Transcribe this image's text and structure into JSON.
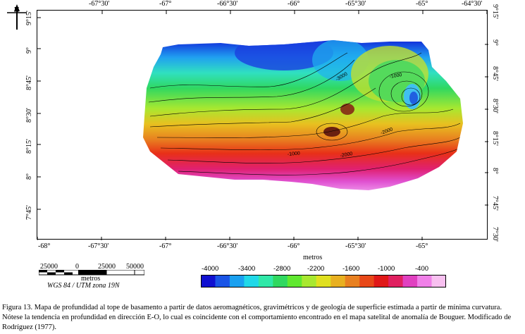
{
  "map": {
    "top_lon_labels": [
      "-67°30'",
      "-67°",
      "-66°30'",
      "-66°",
      "-65°30'",
      "-65°",
      "-64°30'"
    ],
    "bottom_lon_labels": [
      "-68°",
      "-67°30'",
      "-67°",
      "-66°30'",
      "-66°",
      "-65°30'",
      "-65°"
    ],
    "left_lat_labels": [
      "9°15'",
      "9°",
      "8°45'",
      "8°30'",
      "8°15'",
      "8°",
      "7°45'"
    ],
    "right_lat_labels": [
      "9°15'",
      "9°",
      "8°45'",
      "8°30'",
      "8°15'",
      "8°",
      "7°45'",
      "7°30'"
    ],
    "x_axis_label": "metros",
    "contour_labels": [
      "-3000",
      "-1000",
      "-2000",
      "-1000",
      "-2000"
    ],
    "north_symbol": "N"
  },
  "scalebar": {
    "ticks": [
      "25000",
      "0",
      "25000",
      "50000"
    ],
    "unit": "metros",
    "projection": "WGS 84 / UTM zona 19N"
  },
  "colorbar": {
    "labels": [
      "-4000",
      "-3400",
      "-2800",
      "-2200",
      "-1600",
      "-1000",
      "-400"
    ],
    "colors": [
      "#1010d0",
      "#1a55e6",
      "#1aa0f0",
      "#20d8e8",
      "#30e8a8",
      "#30d860",
      "#60e830",
      "#a8e830",
      "#e0e020",
      "#e8b020",
      "#e88020",
      "#e84818",
      "#e01818",
      "#e02060",
      "#e040c0",
      "#f080e8",
      "#f8c0f0"
    ]
  },
  "caption": {
    "text": "Figura 13. Mapa de profundidad al tope de basamento a partir de datos aeromagnéticos, gravimétricos y de geología de superficie estimada a partir de mínima curvatura. Nótese la tendencia en profundidad en dirección E-O, lo cual es coincidente con el comportamiento encontrado en el mapa satelital de anomalía de Bouguer. Modificado de Rodríguez (1977)."
  }
}
